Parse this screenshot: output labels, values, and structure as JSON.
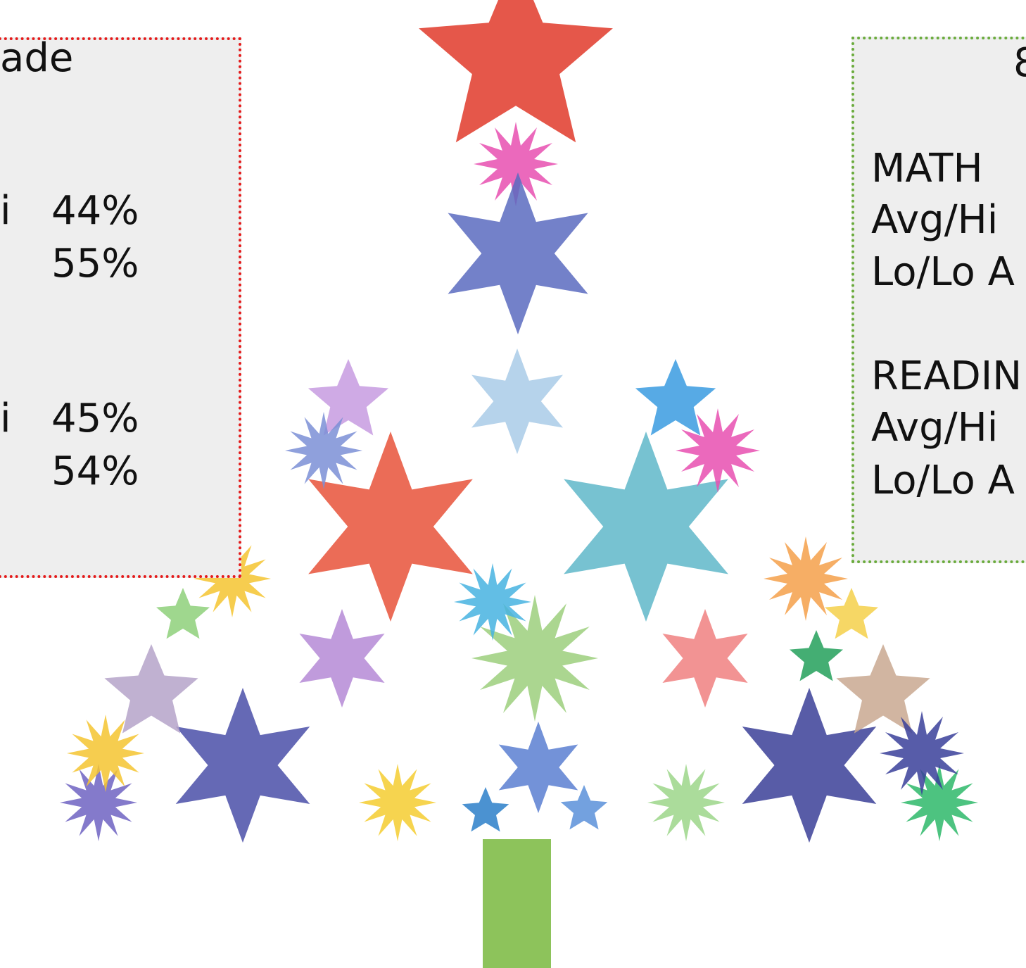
{
  "left_panel": {
    "title": "ade",
    "rows": [
      {
        "label": "i",
        "value": "44%"
      },
      {
        "value": "55%"
      },
      {
        "label": "i",
        "value": "45%"
      },
      {
        "value": "54%"
      }
    ]
  },
  "right_panel": {
    "title": "8",
    "math": {
      "heading": "MATH",
      "lines": [
        "Avg/Hi",
        "Lo/Lo A"
      ]
    },
    "reading": {
      "heading": "READIN",
      "lines": [
        "Avg/Hi",
        "Lo/Lo A"
      ]
    }
  }
}
